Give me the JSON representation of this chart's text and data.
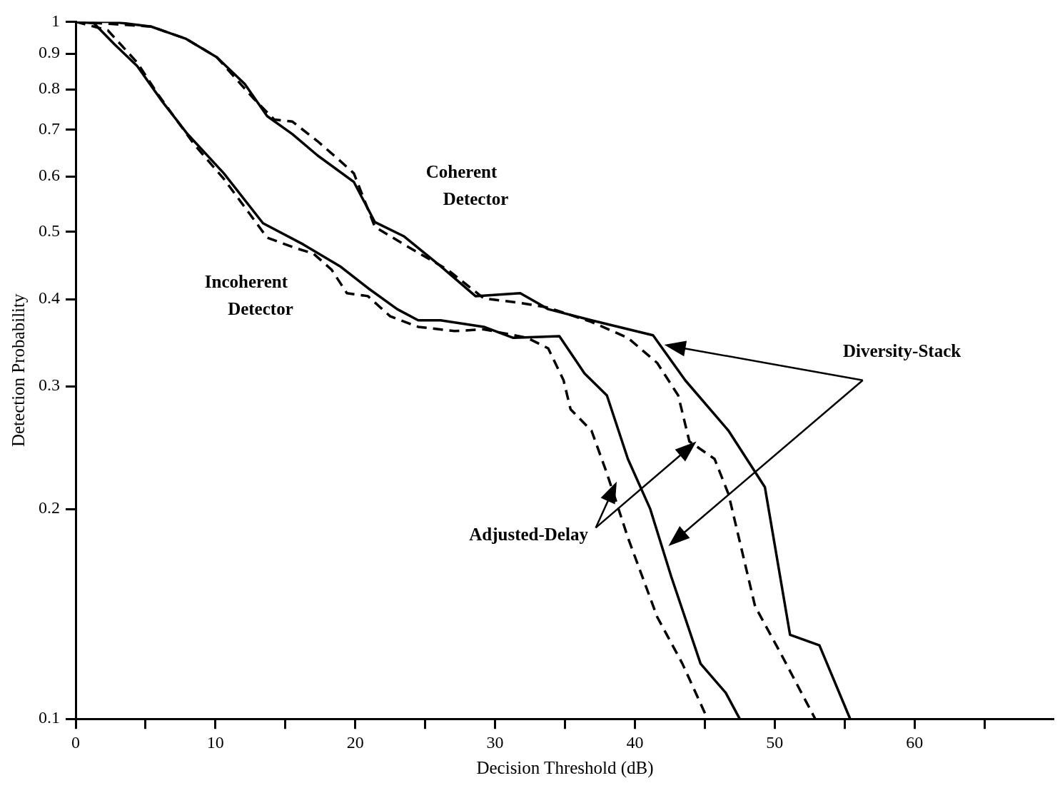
{
  "chart_data": {
    "type": "line",
    "xlabel": "Decision Threshold (dB)",
    "ylabel": "Detection Probability",
    "xlim": [
      0,
      70
    ],
    "xticks": [
      0,
      {
        "value": 5,
        "label": null
      },
      10,
      {
        "value": 15,
        "label": null
      },
      20,
      {
        "value": 25,
        "label": null
      },
      30,
      {
        "value": 35,
        "label": null
      },
      40,
      {
        "value": 45,
        "label": null
      },
      50,
      {
        "value": 55,
        "label": null
      },
      60,
      {
        "value": 65,
        "label": null
      }
    ],
    "ylim": [
      0.1,
      1
    ],
    "yticks": [
      0.1,
      0.2,
      0.3,
      0.4,
      0.5,
      0.6,
      0.7,
      0.8,
      0.9,
      1
    ],
    "log": "y",
    "grid": false,
    "legend": false,
    "marker": "none",
    "series": [
      {
        "color": "#000000",
        "line_style": "solid",
        "x": [
          0,
          2.6,
          5.4,
          7.9,
          10.1,
          12.1,
          13.7,
          15.5,
          17.3,
          19.9,
          21.4,
          23.5,
          26.1,
          28.6,
          31.8,
          33.8,
          36.9,
          41.3,
          43.6,
          46.7,
          49.3,
          51.1,
          53.2,
          55.4
        ],
        "values": [
          1.0,
          1.0,
          0.984,
          0.945,
          0.889,
          0.814,
          0.732,
          0.69,
          0.643,
          0.589,
          0.516,
          0.492,
          0.446,
          0.404,
          0.408,
          0.387,
          0.373,
          0.355,
          0.306,
          0.259,
          0.215,
          0.132,
          0.1275,
          0.1
        ]
      },
      {
        "color": "#000000",
        "line_style": "dashed",
        "x": [
          0,
          5.4,
          7.9,
          10.1,
          12.7,
          14.2,
          15.5,
          17.3,
          18.9,
          19.9,
          21.4,
          23.5,
          26.6,
          29.2,
          31.8,
          33.8,
          36.9,
          39.5,
          41.6,
          43.1,
          43.9,
          45.7,
          46.7,
          48.6,
          50.4,
          52.9
        ],
        "values": [
          1.0,
          0.984,
          0.945,
          0.889,
          0.777,
          0.724,
          0.719,
          0.674,
          0.632,
          0.606,
          0.508,
          0.479,
          0.441,
          0.401,
          0.395,
          0.389,
          0.371,
          0.352,
          0.324,
          0.291,
          0.25,
          0.236,
          0.21,
          0.145,
          0.1245,
          0.1
        ]
      },
      {
        "color": "#000000",
        "line_style": "solid",
        "x": [
          0,
          1.3,
          2.8,
          4.4,
          6.2,
          8.0,
          10.6,
          13.4,
          16.3,
          18.9,
          20.9,
          23.0,
          24.5,
          26.1,
          29.2,
          31.3,
          34.6,
          36.4,
          38.0,
          39.5,
          41.1,
          42.6,
          44.7,
          46.5,
          47.5
        ],
        "values": [
          1.0,
          0.995,
          0.927,
          0.864,
          0.768,
          0.69,
          0.606,
          0.514,
          0.479,
          0.446,
          0.415,
          0.387,
          0.373,
          0.373,
          0.365,
          0.352,
          0.354,
          0.313,
          0.291,
          0.236,
          0.2,
          0.16,
          0.12,
          0.109,
          0.1
        ]
      },
      {
        "color": "#000000",
        "line_style": "dashed",
        "x": [
          0,
          2.3,
          4.4,
          5.9,
          8.5,
          10.6,
          13.7,
          15.8,
          17.0,
          18.3,
          19.4,
          20.9,
          22.5,
          24.5,
          27.1,
          29.2,
          32.3,
          33.8,
          34.9,
          35.4,
          36.9,
          38.0,
          39.5,
          41.6,
          43.4,
          45.2
        ],
        "values": [
          1.0,
          0.972,
          0.874,
          0.786,
          0.666,
          0.595,
          0.49,
          0.473,
          0.465,
          0.441,
          0.408,
          0.404,
          0.378,
          0.365,
          0.36,
          0.362,
          0.352,
          0.34,
          0.306,
          0.278,
          0.259,
          0.225,
          0.182,
          0.14,
          0.12,
          0.1
        ]
      }
    ],
    "annotations": [
      "Coherent Detector",
      "Incoherent Detector",
      "Diversity-Stack",
      "Adjusted-Delay"
    ]
  }
}
